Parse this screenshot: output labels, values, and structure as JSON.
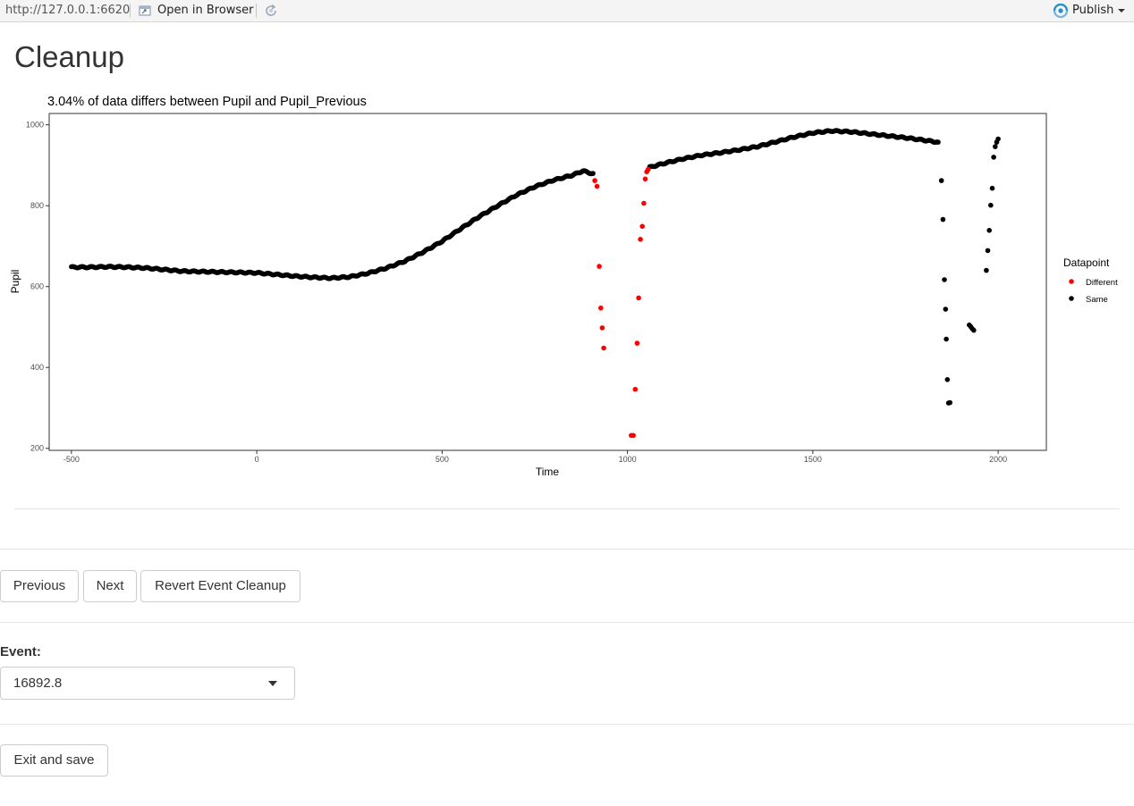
{
  "topbar": {
    "url": "http://127.0.0.1:6620",
    "open_browser": "Open in Browser",
    "publish": "Publish",
    "icons": [
      "open-browser-icon",
      "refresh-icon",
      "publish-icon",
      "chevron-down-icon"
    ]
  },
  "page": {
    "title": "Cleanup"
  },
  "buttons": {
    "previous": "Previous",
    "next": "Next",
    "revert": "Revert Event Cleanup",
    "exit": "Exit and save"
  },
  "event": {
    "label": "Event:",
    "value": "16892.8"
  },
  "chart_data": {
    "type": "scatter",
    "title": "3.04% of data differs between Pupil and Pupil_Previous",
    "xlabel": "Time",
    "ylabel": "Pupil",
    "xlim": [
      -560,
      2130
    ],
    "ylim": [
      195,
      1028
    ],
    "xticks": [
      -500,
      0,
      500,
      1000,
      1500,
      2000
    ],
    "yticks": [
      200,
      400,
      600,
      800,
      1000
    ],
    "legend": {
      "title": "Datapoint",
      "placement": "right"
    },
    "colors": {
      "Different": "#ff0000",
      "Same": "#000000"
    },
    "series": [
      {
        "name": "Same",
        "line_points": [
          [
            -500,
            648
          ],
          [
            -450,
            648
          ],
          [
            -400,
            649
          ],
          [
            -350,
            648
          ],
          [
            -300,
            646
          ],
          [
            -250,
            642
          ],
          [
            -200,
            638
          ],
          [
            -150,
            637
          ],
          [
            -100,
            636
          ],
          [
            -50,
            635
          ],
          [
            0,
            634
          ],
          [
            50,
            630
          ],
          [
            100,
            626
          ],
          [
            150,
            623
          ],
          [
            200,
            621
          ],
          [
            250,
            624
          ],
          [
            300,
            633
          ],
          [
            350,
            646
          ],
          [
            400,
            663
          ],
          [
            450,
            686
          ],
          [
            500,
            712
          ],
          [
            550,
            743
          ],
          [
            600,
            773
          ],
          [
            650,
            800
          ],
          [
            700,
            826
          ],
          [
            750,
            847
          ],
          [
            800,
            863
          ],
          [
            850,
            875
          ],
          [
            880,
            886
          ],
          [
            910,
            878
          ],
          [
            1060,
            895
          ],
          [
            1100,
            905
          ],
          [
            1150,
            916
          ],
          [
            1200,
            925
          ],
          [
            1250,
            931
          ],
          [
            1300,
            938
          ],
          [
            1350,
            946
          ],
          [
            1400,
            958
          ],
          [
            1450,
            970
          ],
          [
            1500,
            980
          ],
          [
            1550,
            985
          ],
          [
            1600,
            983
          ],
          [
            1650,
            978
          ],
          [
            1700,
            973
          ],
          [
            1750,
            968
          ],
          [
            1800,
            962
          ],
          [
            1838,
            957
          ]
        ],
        "scatter_points": [
          [
            1847,
            862
          ],
          [
            1851,
            766
          ],
          [
            1855,
            617
          ],
          [
            1858,
            544
          ],
          [
            1860,
            470
          ],
          [
            1863,
            370
          ],
          [
            1866,
            312
          ],
          [
            1870,
            313
          ],
          [
            1922,
            505
          ],
          [
            1926,
            501
          ],
          [
            1930,
            496
          ],
          [
            1934,
            492
          ],
          [
            1968,
            640
          ],
          [
            1972,
            689
          ],
          [
            1976,
            739
          ],
          [
            1980,
            801
          ],
          [
            1984,
            843
          ],
          [
            1988,
            920
          ],
          [
            1992,
            946
          ],
          [
            1996,
            957
          ],
          [
            2000,
            965
          ]
        ]
      },
      {
        "name": "Different",
        "points": [
          [
            912,
            862
          ],
          [
            918,
            848
          ],
          [
            924,
            650
          ],
          [
            928,
            547
          ],
          [
            932,
            498
          ],
          [
            936,
            448
          ],
          [
            1010,
            232
          ],
          [
            1016,
            232
          ],
          [
            1021,
            346
          ],
          [
            1026,
            460
          ],
          [
            1030,
            572
          ],
          [
            1035,
            717
          ],
          [
            1040,
            749
          ],
          [
            1044,
            806
          ],
          [
            1048,
            866
          ],
          [
            1052,
            884
          ],
          [
            1056,
            890
          ]
        ]
      }
    ]
  }
}
